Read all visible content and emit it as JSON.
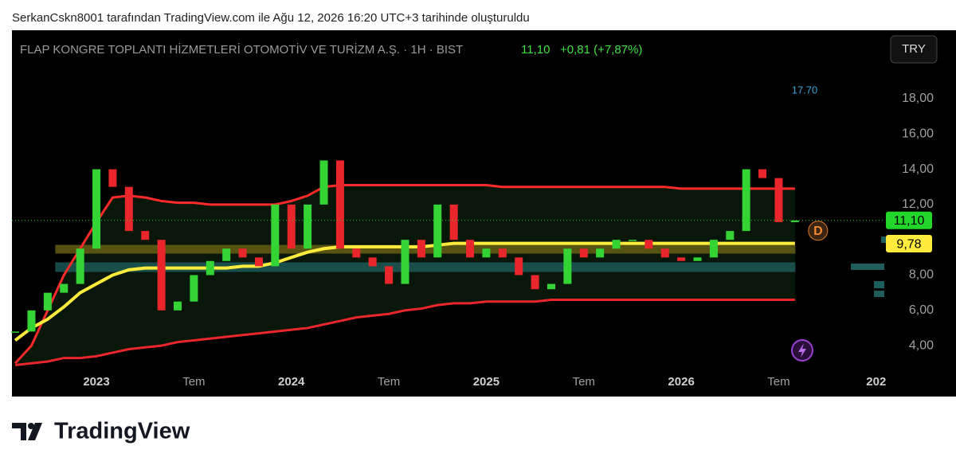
{
  "caption": "SerkanCskn8001 tarafından TradingView.com ile Ağu 12, 2026 16:20 UTC+3 tarihinde oluşturuldu",
  "symbol": "FLAP KONGRE TOPLANTI HİZMETLERİ OTOMOTİV VE TURİZM A.Ş. · 1H · BIST",
  "price": "11,10",
  "change": "+0,81 (+7,87%)",
  "currency": "TRY",
  "logo": "TradingView",
  "chart_data": {
    "type": "line",
    "annotation": "17.70",
    "badge": "D",
    "x": [
      0,
      1,
      2,
      3,
      4,
      5,
      6,
      7,
      8,
      9,
      10,
      11,
      12,
      13,
      14,
      15,
      16,
      17,
      18,
      19,
      20,
      21,
      22,
      23,
      24,
      25,
      26,
      27,
      28,
      29,
      30,
      31,
      32,
      33,
      34,
      35,
      36,
      37,
      38,
      39,
      40,
      41,
      42,
      43,
      44,
      45,
      46,
      47,
      48
    ],
    "series": [
      {
        "style": "candles",
        "color": "#35d435",
        "down_color": "#e8262b",
        "values": [
          4.8,
          6.0,
          7.0,
          7.5,
          9.5,
          14,
          13,
          10.5,
          10,
          6,
          6.5,
          8,
          8.8,
          9.5,
          9,
          8.5,
          12,
          9.5,
          12,
          14.5,
          9.5,
          9,
          8.5,
          7.5,
          10,
          9,
          12,
          10,
          9,
          9.5,
          9,
          8,
          7.2,
          7.5,
          9.5,
          9,
          9.5,
          10,
          10,
          9.5,
          9,
          8.8,
          9,
          10,
          10.5,
          14,
          13.5,
          11,
          11.1
        ]
      },
      {
        "color": "#ff2b2b",
        "values": [
          3.0,
          4,
          6,
          8,
          9.5,
          11,
          12.4,
          12.5,
          12.4,
          12.2,
          12.1,
          12.1,
          12.0,
          12.0,
          12.0,
          12.0,
          12.0,
          12.2,
          12.5,
          13,
          13.1,
          13.1,
          13.1,
          13.1,
          13.1,
          13.1,
          13.1,
          13.1,
          13.1,
          13.1,
          13.0,
          13.0,
          13.0,
          13.0,
          13.0,
          13.0,
          13.0,
          13.0,
          13.0,
          13.0,
          13.0,
          12.9,
          12.9,
          12.9,
          12.9,
          12.9,
          12.9,
          12.9,
          12.9
        ]
      },
      {
        "color": "#ffeb3b",
        "values": [
          4.3,
          5,
          5.5,
          6.2,
          7,
          7.5,
          8,
          8.3,
          8.4,
          8.4,
          8.4,
          8.4,
          8.4,
          8.4,
          8.5,
          8.5,
          8.7,
          9.0,
          9.3,
          9.5,
          9.6,
          9.6,
          9.6,
          9.6,
          9.6,
          9.6,
          9.7,
          9.8,
          9.8,
          9.8,
          9.8,
          9.8,
          9.8,
          9.8,
          9.8,
          9.8,
          9.8,
          9.8,
          9.8,
          9.8,
          9.8,
          9.8,
          9.8,
          9.8,
          9.8,
          9.8,
          9.8,
          9.8,
          9.8
        ]
      },
      {
        "color": "#e8262b",
        "values": [
          2.9,
          3.0,
          3.1,
          3.3,
          3.3,
          3.4,
          3.6,
          3.8,
          3.9,
          4.0,
          4.2,
          4.3,
          4.4,
          4.5,
          4.6,
          4.7,
          4.8,
          4.9,
          5.0,
          5.2,
          5.4,
          5.6,
          5.7,
          5.8,
          6.0,
          6.1,
          6.3,
          6.4,
          6.4,
          6.5,
          6.5,
          6.5,
          6.5,
          6.6,
          6.6,
          6.6,
          6.6,
          6.6,
          6.6,
          6.6,
          6.6,
          6.6,
          6.6,
          6.6,
          6.6,
          6.6,
          6.6,
          6.6,
          6.6
        ]
      }
    ],
    "zones": [
      {
        "range": [
          9.24,
          9.69
        ],
        "color": "#6b6315"
      },
      {
        "range": [
          8.2,
          8.7
        ],
        "color": "#1f5c5c"
      }
    ],
    "price_lines": [
      {
        "value": 11.1,
        "label": "11,10",
        "color": "#22d62a"
      },
      {
        "value": 9.78,
        "label": "9,78",
        "color": "#ffeb3b"
      }
    ],
    "xlim": [
      -0.2,
      53.5
    ],
    "xticks": [
      {
        "value": 5,
        "label": "2023"
      },
      {
        "value": 11,
        "label": "Tem"
      },
      {
        "value": 17,
        "label": "2024"
      },
      {
        "value": 23,
        "label": "Tem"
      },
      {
        "value": 29,
        "label": "2025"
      },
      {
        "value": 35,
        "label": "Tem"
      },
      {
        "value": 41,
        "label": "2026"
      },
      {
        "value": 47,
        "label": "Tem"
      },
      {
        "value": 53,
        "label": "202"
      }
    ],
    "ylim": [
      2.74,
      21.88
    ],
    "yticks": [
      {
        "value": 4,
        "label": "4,00"
      },
      {
        "value": 6,
        "label": "6,00"
      },
      {
        "value": 8,
        "label": "8,00"
      },
      {
        "value": 12,
        "label": "12,00"
      },
      {
        "value": 14,
        "label": "14,00"
      },
      {
        "value": 16,
        "label": "16,00"
      },
      {
        "value": 18,
        "label": "18,00"
      }
    ]
  }
}
